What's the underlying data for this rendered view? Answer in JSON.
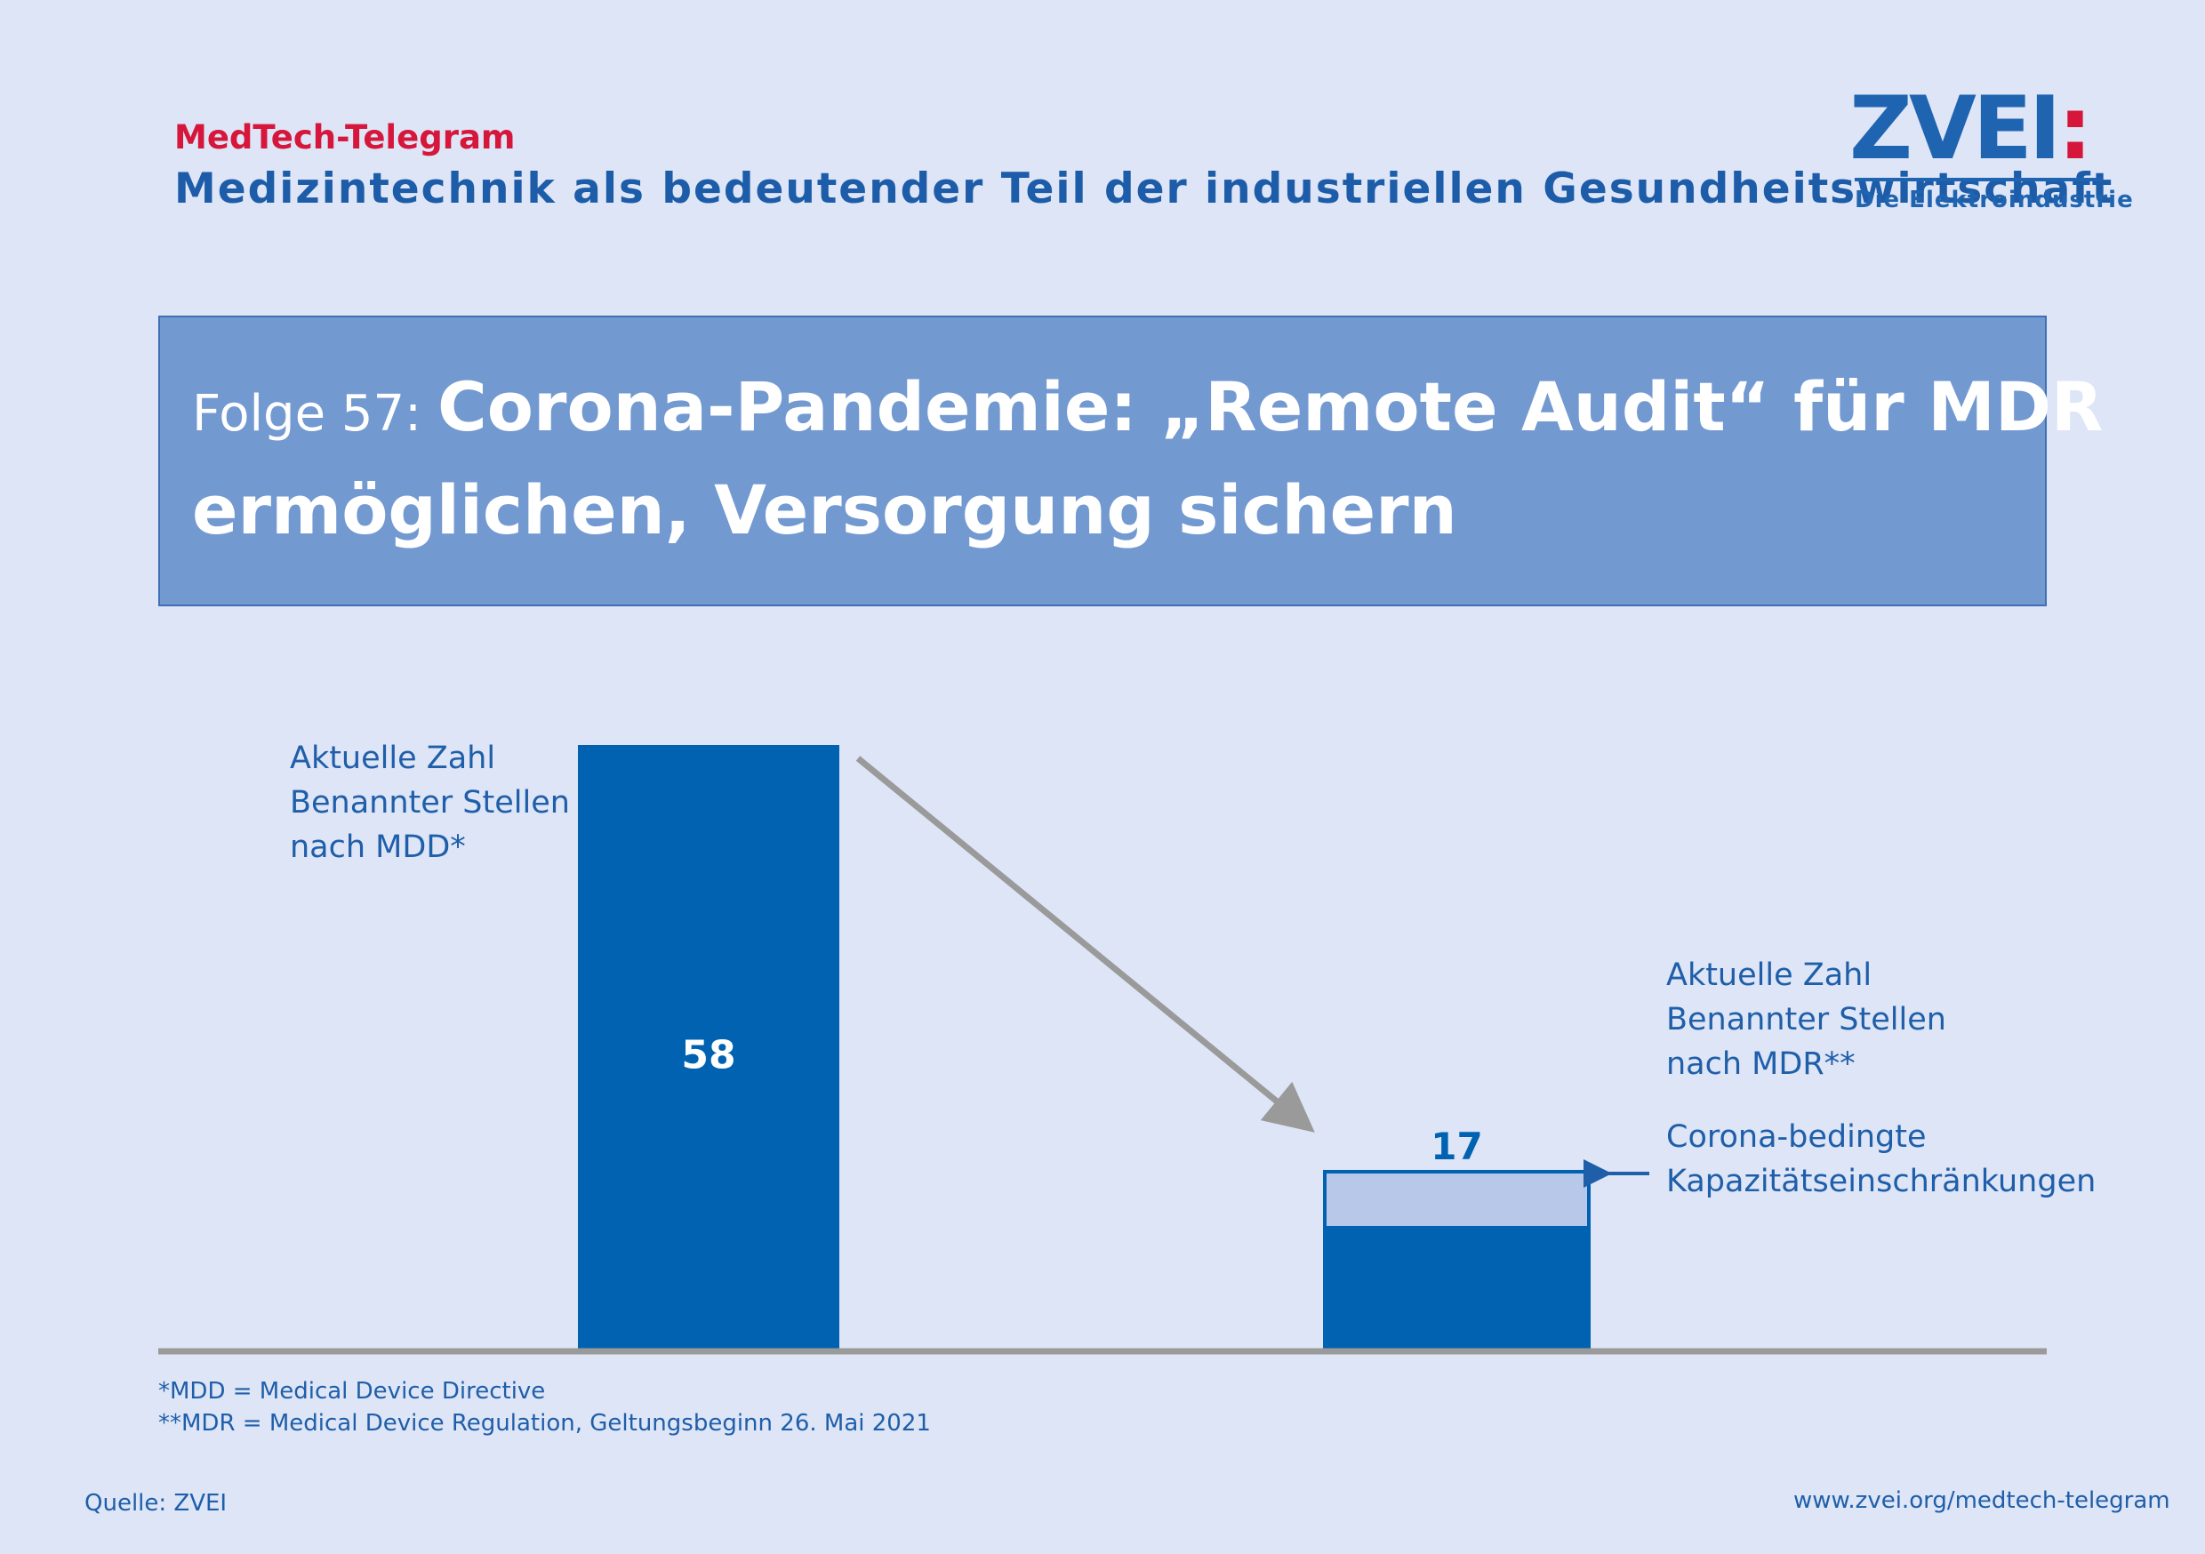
{
  "header": {
    "kicker": "MedTech-Telegram",
    "subtitle": "Medizintechnik als bedeutender Teil der industriellen Gesundheitswirtschaft"
  },
  "logo": {
    "word": "ZVEI",
    "colon": ":",
    "tagline": "Die Elektroindustrie"
  },
  "banner": {
    "episode": "Folge 57:",
    "headline_line1": "Corona-Pandemie: „Remote Audit“ für MDR",
    "headline_line2": "ermöglichen, Versorgung sichern"
  },
  "chart_data": {
    "type": "bar",
    "categories": [
      "Aktuelle Zahl\nBenannter Stellen\nnach MDD*",
      "Aktuelle Zahl\nBenannter Stellen\nnach MDR**"
    ],
    "values": [
      58,
      17
    ],
    "data_labels": [
      "58",
      "17"
    ],
    "annotations": [
      "Corona-bedingte\nKapazitätseinschränkungen"
    ],
    "colors": {
      "bar": "#0062b0",
      "reduced_segment": "#b7c8e8",
      "arrow": "#9a9a9a",
      "baseline": "#9a9a9a"
    },
    "ylim": [
      0,
      58
    ],
    "grid": false
  },
  "footnotes": [
    "*MDD = Medical Device Directive",
    "**MDR = Medical Device Regulation, Geltungsbeginn 26. Mai 2021"
  ],
  "footer": {
    "source": "Quelle: ZVEI",
    "url": "www.zvei.org/medtech-telegram"
  }
}
